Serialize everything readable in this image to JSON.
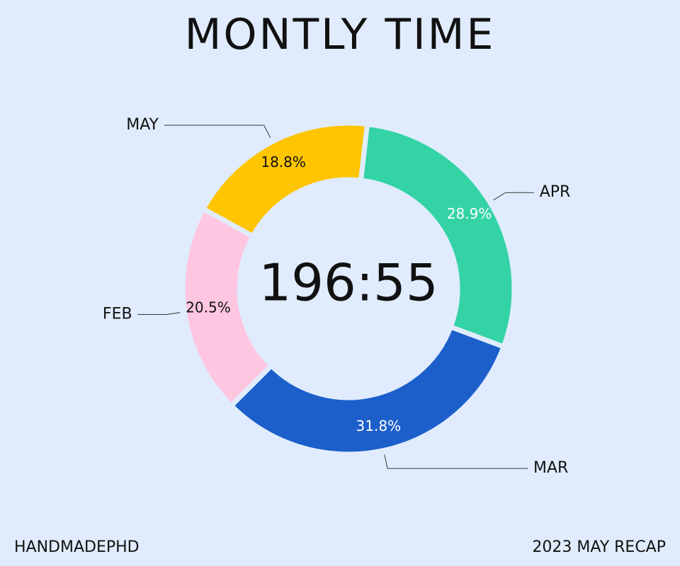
{
  "title": "MONTLY TIME",
  "center_total": "196:55",
  "footer": {
    "left": "HANDMADEPHD",
    "right": "2023 MAY RECAP"
  },
  "chart_data": {
    "type": "pie",
    "variant": "donut",
    "slices": [
      {
        "label": "APR",
        "value": 28.9,
        "display": "28.9%",
        "color": "#34d3a5",
        "text_color": "#ffffff"
      },
      {
        "label": "MAR",
        "value": 31.8,
        "display": "31.8%",
        "color": "#1c5fcb",
        "text_color": "#ffffff"
      },
      {
        "label": "FEB",
        "value": 20.5,
        "display": "20.5%",
        "color": "#fec6e0",
        "text_color": "#111111"
      },
      {
        "label": "MAY",
        "value": 18.8,
        "display": "18.8%",
        "color": "#fec500",
        "text_color": "#111111"
      }
    ]
  }
}
